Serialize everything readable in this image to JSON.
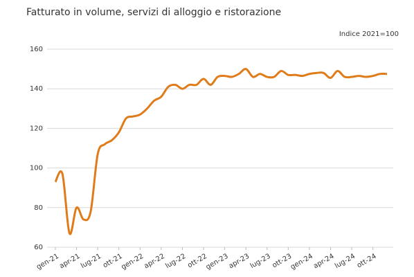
{
  "chart_data": {
    "type": "line",
    "title": "Fatturato in volume, servizi di alloggio e ristorazione",
    "subtitle": "Indice 2021=100",
    "categories": [
      "gen-21",
      null,
      null,
      "apr-21",
      null,
      null,
      "lug-21",
      null,
      null,
      "ott-21",
      null,
      null,
      "gen-22",
      null,
      null,
      "apr-22",
      null,
      null,
      "lug-22",
      null,
      null,
      "ott-22",
      null,
      null,
      "gen-23",
      null,
      null,
      "apr-23",
      null,
      null,
      "lug-23",
      null,
      null,
      "ott-23",
      null,
      null,
      "gen-24",
      null,
      null,
      "apr-24",
      null,
      null,
      "lug-24",
      null,
      null,
      "ott-24",
      null,
      null
    ],
    "series": [
      {
        "name": "Fatturato in volume",
        "color": "#e07b1a",
        "values": [
          93,
          97,
          67,
          80,
          74,
          78,
          107,
          112,
          114,
          118,
          125,
          126,
          127,
          130,
          134,
          136,
          141,
          142,
          140,
          142,
          142,
          145,
          142,
          146,
          146.5,
          146,
          147.5,
          150,
          146,
          147.5,
          146,
          146,
          149,
          147,
          147,
          146.5,
          147.5,
          148,
          148,
          145.5,
          149,
          146,
          146,
          146.5,
          146,
          146.5,
          147.5,
          147.5
        ]
      }
    ],
    "ylim": [
      60,
      160
    ],
    "yticks": [
      60,
      80,
      100,
      120,
      140,
      160
    ],
    "grid": true
  }
}
